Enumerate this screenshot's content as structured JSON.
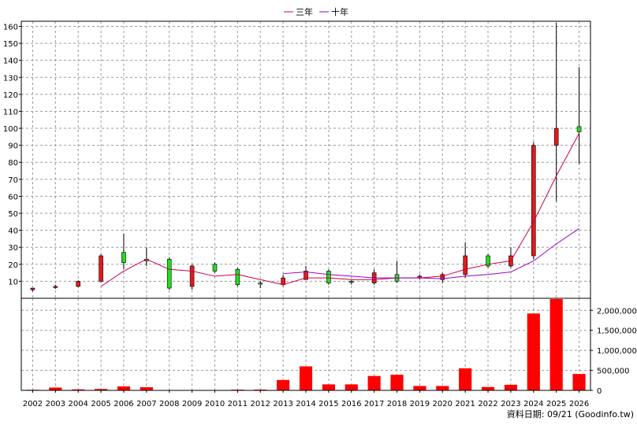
{
  "legend": [
    {
      "label": "三年",
      "color": "#cc0044"
    },
    {
      "label": "十年",
      "color": "#9900cc"
    }
  ],
  "footer": "資料日期: 09/21 (Goodinfo.tw)",
  "colors": {
    "up": "#e21b1b",
    "down": "#22dd22",
    "volume": "#ff0000",
    "wick": "#000000"
  },
  "chart_data": {
    "type": "candlestick",
    "years": [
      "2002",
      "2003",
      "2004",
      "2005",
      "2006",
      "2007",
      "2008",
      "2009",
      "2010",
      "2011",
      "2012",
      "2013",
      "2014",
      "2015",
      "2016",
      "2017",
      "2018",
      "2019",
      "2020",
      "2021",
      "2022",
      "2023",
      "2024",
      "2025",
      "2026"
    ],
    "price_axis": {
      "min": 0,
      "max": 163,
      "ticks": [
        10,
        20,
        30,
        40,
        50,
        60,
        70,
        80,
        90,
        100,
        110,
        120,
        130,
        140,
        150,
        160
      ]
    },
    "volume_axis": {
      "min": 0,
      "max": 2300000,
      "ticks": [
        0,
        500000,
        1000000,
        1500000,
        2000000
      ],
      "tick_labels": [
        "0",
        "500,000",
        "1,000,000",
        "1,500,000",
        "2,000,000"
      ]
    },
    "candles": [
      {
        "open": 5,
        "close": 6,
        "high": 6,
        "low": 4
      },
      {
        "open": 6.5,
        "close": 7,
        "high": 8,
        "low": 5.5
      },
      {
        "open": 7,
        "close": 10,
        "high": 10.5,
        "low": 6.5
      },
      {
        "open": 10,
        "close": 25,
        "high": 26,
        "low": 9.5
      },
      {
        "open": 27,
        "close": 21,
        "high": 38,
        "low": 17
      },
      {
        "open": 23,
        "close": 22,
        "high": 30,
        "low": 19
      },
      {
        "open": 23,
        "close": 6,
        "high": 24,
        "low": 5
      },
      {
        "open": 7,
        "close": 19,
        "high": 20,
        "low": 5
      },
      {
        "open": 20,
        "close": 16,
        "high": 21,
        "low": 15
      },
      {
        "open": 17,
        "close": 8,
        "high": 18,
        "low": 7
      },
      {
        "open": 9,
        "close": 8.5,
        "high": 10,
        "low": 6
      },
      {
        "open": 8,
        "close": 12,
        "high": 14,
        "low": 7
      },
      {
        "open": 11,
        "close": 16,
        "high": 19,
        "low": 11
      },
      {
        "open": 16,
        "close": 9,
        "high": 17,
        "low": 8
      },
      {
        "open": 10,
        "close": 9.5,
        "high": 11,
        "low": 8
      },
      {
        "open": 9,
        "close": 15,
        "high": 17,
        "low": 8
      },
      {
        "open": 14,
        "close": 10,
        "high": 22,
        "low": 9
      },
      {
        "open": 12,
        "close": 13,
        "high": 14,
        "low": 11
      },
      {
        "open": 11,
        "close": 14,
        "high": 15,
        "low": 9
      },
      {
        "open": 14,
        "close": 25,
        "high": 33,
        "low": 12
      },
      {
        "open": 25,
        "close": 19,
        "high": 26,
        "low": 18
      },
      {
        "open": 19,
        "close": 25,
        "high": 30,
        "low": 18
      },
      {
        "open": 25,
        "close": 90,
        "high": 92,
        "low": 23
      },
      {
        "open": 90,
        "close": 100,
        "high": 162,
        "low": 57
      },
      {
        "open": 101,
        "close": 98,
        "high": 136,
        "low": 79
      }
    ],
    "series": [
      {
        "name": "三年",
        "values": [
          null,
          null,
          null,
          7,
          16,
          23,
          17,
          16,
          13,
          14,
          11,
          8,
          12,
          12,
          11,
          11,
          12,
          12,
          13,
          17,
          20,
          22,
          45,
          72,
          97
        ]
      },
      {
        "name": "十年",
        "values": [
          null,
          null,
          null,
          null,
          null,
          null,
          null,
          null,
          null,
          null,
          null,
          14.5,
          15.5,
          14,
          13,
          12,
          12,
          12,
          11.5,
          13,
          14,
          15.5,
          22,
          32,
          41
        ]
      }
    ],
    "volume": [
      15000,
      70000,
      25000,
      35000,
      100000,
      80000,
      8000,
      6000,
      6000,
      18000,
      20000,
      260000,
      600000,
      150000,
      150000,
      360000,
      390000,
      110000,
      110000,
      550000,
      85000,
      140000,
      1920000,
      2280000,
      410000
    ]
  }
}
